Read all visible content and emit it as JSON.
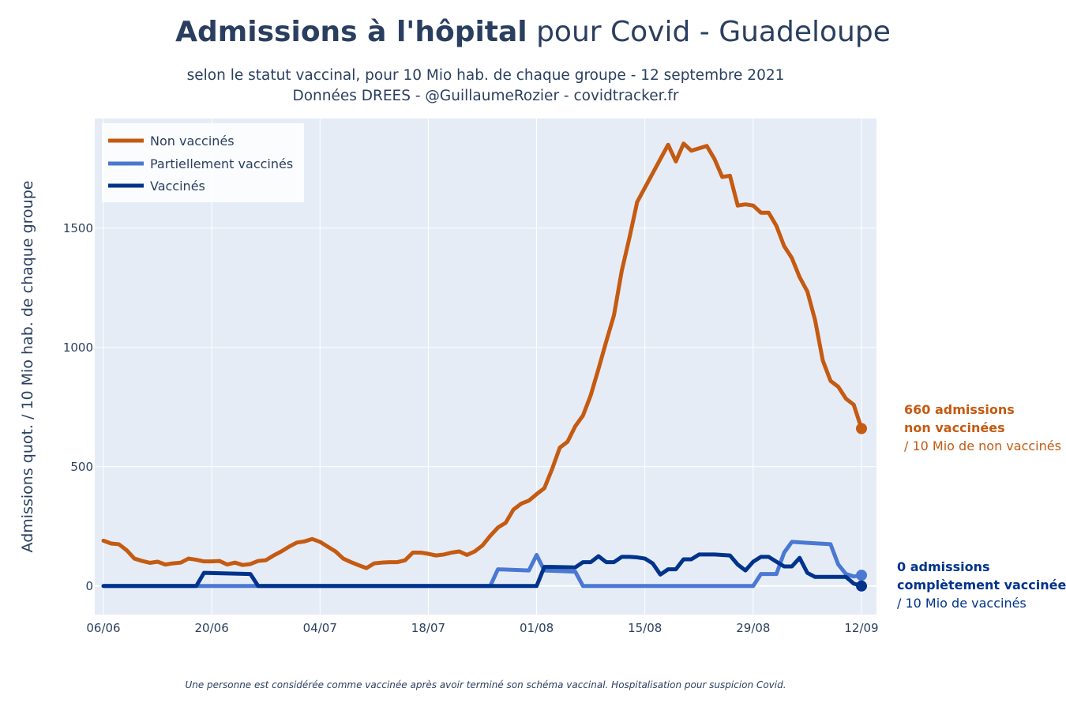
{
  "chart_data": {
    "type": "line",
    "title_bold": "Admissions à l'hôpital",
    "title_rest": " pour Covid - Guadeloupe",
    "subtitle_1": "selon le statut vaccinal, pour 10 Mio hab. de chaque groupe - 12 septembre 2021",
    "subtitle_2": "Données DREES - @GuillaumeRozier - covidtracker.fr",
    "ylabel": "Admissions quot. / 10 Mio hab. de chaque groupe",
    "xlabel": "",
    "footnote": "Une personne est considérée comme vaccinée après avoir terminé son schéma vaccinal. Hospitalisation pour suspicion Covid.",
    "x_start": "2021-06-06",
    "x_end": "2021-09-12",
    "x_ticks": [
      {
        "date": "2021-06-06",
        "label": "06/06"
      },
      {
        "date": "2021-06-20",
        "label": "20/06"
      },
      {
        "date": "2021-07-04",
        "label": "04/07"
      },
      {
        "date": "2021-07-18",
        "label": "18/07"
      },
      {
        "date": "2021-08-01",
        "label": "01/08"
      },
      {
        "date": "2021-08-15",
        "label": "15/08"
      },
      {
        "date": "2021-08-29",
        "label": "29/08"
      },
      {
        "date": "2021-09-12",
        "label": "12/09"
      }
    ],
    "y_ticks": [
      0,
      500,
      1000,
      1500
    ],
    "ylim": [
      -120,
      1960
    ],
    "grid": true,
    "legend_position": "top-left",
    "series": [
      {
        "name": "Non vaccinés",
        "color": "#C55A11",
        "x": [
          "2021-06-06",
          "2021-06-07",
          "2021-06-08",
          "2021-06-09",
          "2021-06-10",
          "2021-06-11",
          "2021-06-12",
          "2021-06-13",
          "2021-06-14",
          "2021-06-15",
          "2021-06-16",
          "2021-06-17",
          "2021-06-18",
          "2021-06-19",
          "2021-06-20",
          "2021-06-21",
          "2021-06-22",
          "2021-06-23",
          "2021-06-24",
          "2021-06-25",
          "2021-06-26",
          "2021-06-27",
          "2021-06-28",
          "2021-06-29",
          "2021-06-30",
          "2021-07-01",
          "2021-07-02",
          "2021-07-03",
          "2021-07-04",
          "2021-07-05",
          "2021-07-06",
          "2021-07-07",
          "2021-07-08",
          "2021-07-09",
          "2021-07-10",
          "2021-07-11",
          "2021-07-12",
          "2021-07-13",
          "2021-07-14",
          "2021-07-15",
          "2021-07-16",
          "2021-07-17",
          "2021-07-18",
          "2021-07-19",
          "2021-07-20",
          "2021-07-21",
          "2021-07-22",
          "2021-07-23",
          "2021-07-24",
          "2021-07-25",
          "2021-07-26",
          "2021-07-27",
          "2021-07-28",
          "2021-07-29",
          "2021-07-30",
          "2021-07-31",
          "2021-08-01",
          "2021-08-02",
          "2021-08-03",
          "2021-08-04",
          "2021-08-05",
          "2021-08-06",
          "2021-08-07",
          "2021-08-08",
          "2021-08-09",
          "2021-08-10",
          "2021-08-11",
          "2021-08-12",
          "2021-08-13",
          "2021-08-14",
          "2021-08-15",
          "2021-08-16",
          "2021-08-17",
          "2021-08-18",
          "2021-08-19",
          "2021-08-20",
          "2021-08-21",
          "2021-08-22",
          "2021-08-23",
          "2021-08-24",
          "2021-08-25",
          "2021-08-26",
          "2021-08-27",
          "2021-08-28",
          "2021-08-29",
          "2021-08-30",
          "2021-08-31",
          "2021-09-01",
          "2021-09-02",
          "2021-09-03",
          "2021-09-04",
          "2021-09-05",
          "2021-09-06",
          "2021-09-07",
          "2021-09-08",
          "2021-09-09",
          "2021-09-10",
          "2021-09-11",
          "2021-09-12"
        ],
        "values": [
          190,
          178,
          175,
          150,
          115,
          105,
          97,
          102,
          90,
          95,
          98,
          115,
          110,
          103,
          103,
          105,
          90,
          98,
          88,
          92,
          105,
          108,
          128,
          145,
          165,
          182,
          187,
          197,
          185,
          165,
          145,
          115,
          100,
          87,
          75,
          95,
          98,
          100,
          100,
          108,
          140,
          140,
          135,
          128,
          132,
          140,
          145,
          130,
          145,
          170,
          210,
          245,
          265,
          320,
          345,
          358,
          385,
          410,
          490,
          580,
          605,
          670,
          715,
          800,
          910,
          1025,
          1135,
          1320,
          1460,
          1610,
          1670,
          1730,
          1790,
          1850,
          1780,
          1855,
          1825,
          1835,
          1845,
          1790,
          1715,
          1720,
          1595,
          1600,
          1595,
          1565,
          1565,
          1510,
          1425,
          1375,
          1295,
          1235,
          1115,
          945,
          860,
          835,
          785,
          760,
          660
        ]
      },
      {
        "name": "Partiellement vaccinés",
        "color": "#4A78D2",
        "x": [
          "2021-06-06",
          "2021-07-25",
          "2021-07-26",
          "2021-07-27",
          "2021-07-31",
          "2021-08-01",
          "2021-08-02",
          "2021-08-06",
          "2021-08-07",
          "2021-08-08",
          "2021-08-29",
          "2021-08-30",
          "2021-09-01",
          "2021-09-02",
          "2021-09-03",
          "2021-09-08",
          "2021-09-09",
          "2021-09-10",
          "2021-09-11",
          "2021-09-12"
        ],
        "values": [
          0,
          0,
          0,
          70,
          65,
          130,
          65,
          60,
          0,
          0,
          0,
          50,
          50,
          140,
          185,
          175,
          90,
          50,
          40,
          45
        ]
      },
      {
        "name": "Vaccinés",
        "color": "#00338C",
        "x": [
          "2021-06-06",
          "2021-06-07",
          "2021-06-18",
          "2021-06-19",
          "2021-06-25",
          "2021-06-26",
          "2021-07-25",
          "2021-08-01",
          "2021-08-02",
          "2021-08-03",
          "2021-08-06",
          "2021-08-07",
          "2021-08-08",
          "2021-08-09",
          "2021-08-10",
          "2021-08-11",
          "2021-08-12",
          "2021-08-13",
          "2021-08-14",
          "2021-08-15",
          "2021-08-16",
          "2021-08-17",
          "2021-08-18",
          "2021-08-19",
          "2021-08-20",
          "2021-08-21",
          "2021-08-22",
          "2021-08-23",
          "2021-08-24",
          "2021-08-25",
          "2021-08-26",
          "2021-08-27",
          "2021-08-28",
          "2021-08-29",
          "2021-08-30",
          "2021-08-31",
          "2021-09-01",
          "2021-09-02",
          "2021-09-03",
          "2021-09-04",
          "2021-09-05",
          "2021-09-06",
          "2021-09-07",
          "2021-09-08",
          "2021-09-09",
          "2021-09-10",
          "2021-09-11",
          "2021-09-12"
        ],
        "values": [
          0,
          0,
          0,
          55,
          50,
          0,
          0,
          0,
          80,
          80,
          78,
          100,
          100,
          125,
          100,
          100,
          122,
          122,
          120,
          115,
          95,
          48,
          70,
          70,
          112,
          112,
          132,
          132,
          132,
          130,
          128,
          90,
          65,
          102,
          122,
          122,
          102,
          82,
          82,
          118,
          55,
          38,
          38,
          38,
          38,
          38,
          10,
          0
        ]
      }
    ],
    "annotations": [
      {
        "bold_1": "660 admissions",
        "bold_2": "non vaccinées",
        "normal": "/ 10 Mio de non vaccinés",
        "color": "#C55A11"
      },
      {
        "bold_1": "0 admissions",
        "bold_2": "complètement vaccinée",
        "normal": "/ 10 Mio de vaccinés",
        "color": "#00338C"
      }
    ]
  }
}
